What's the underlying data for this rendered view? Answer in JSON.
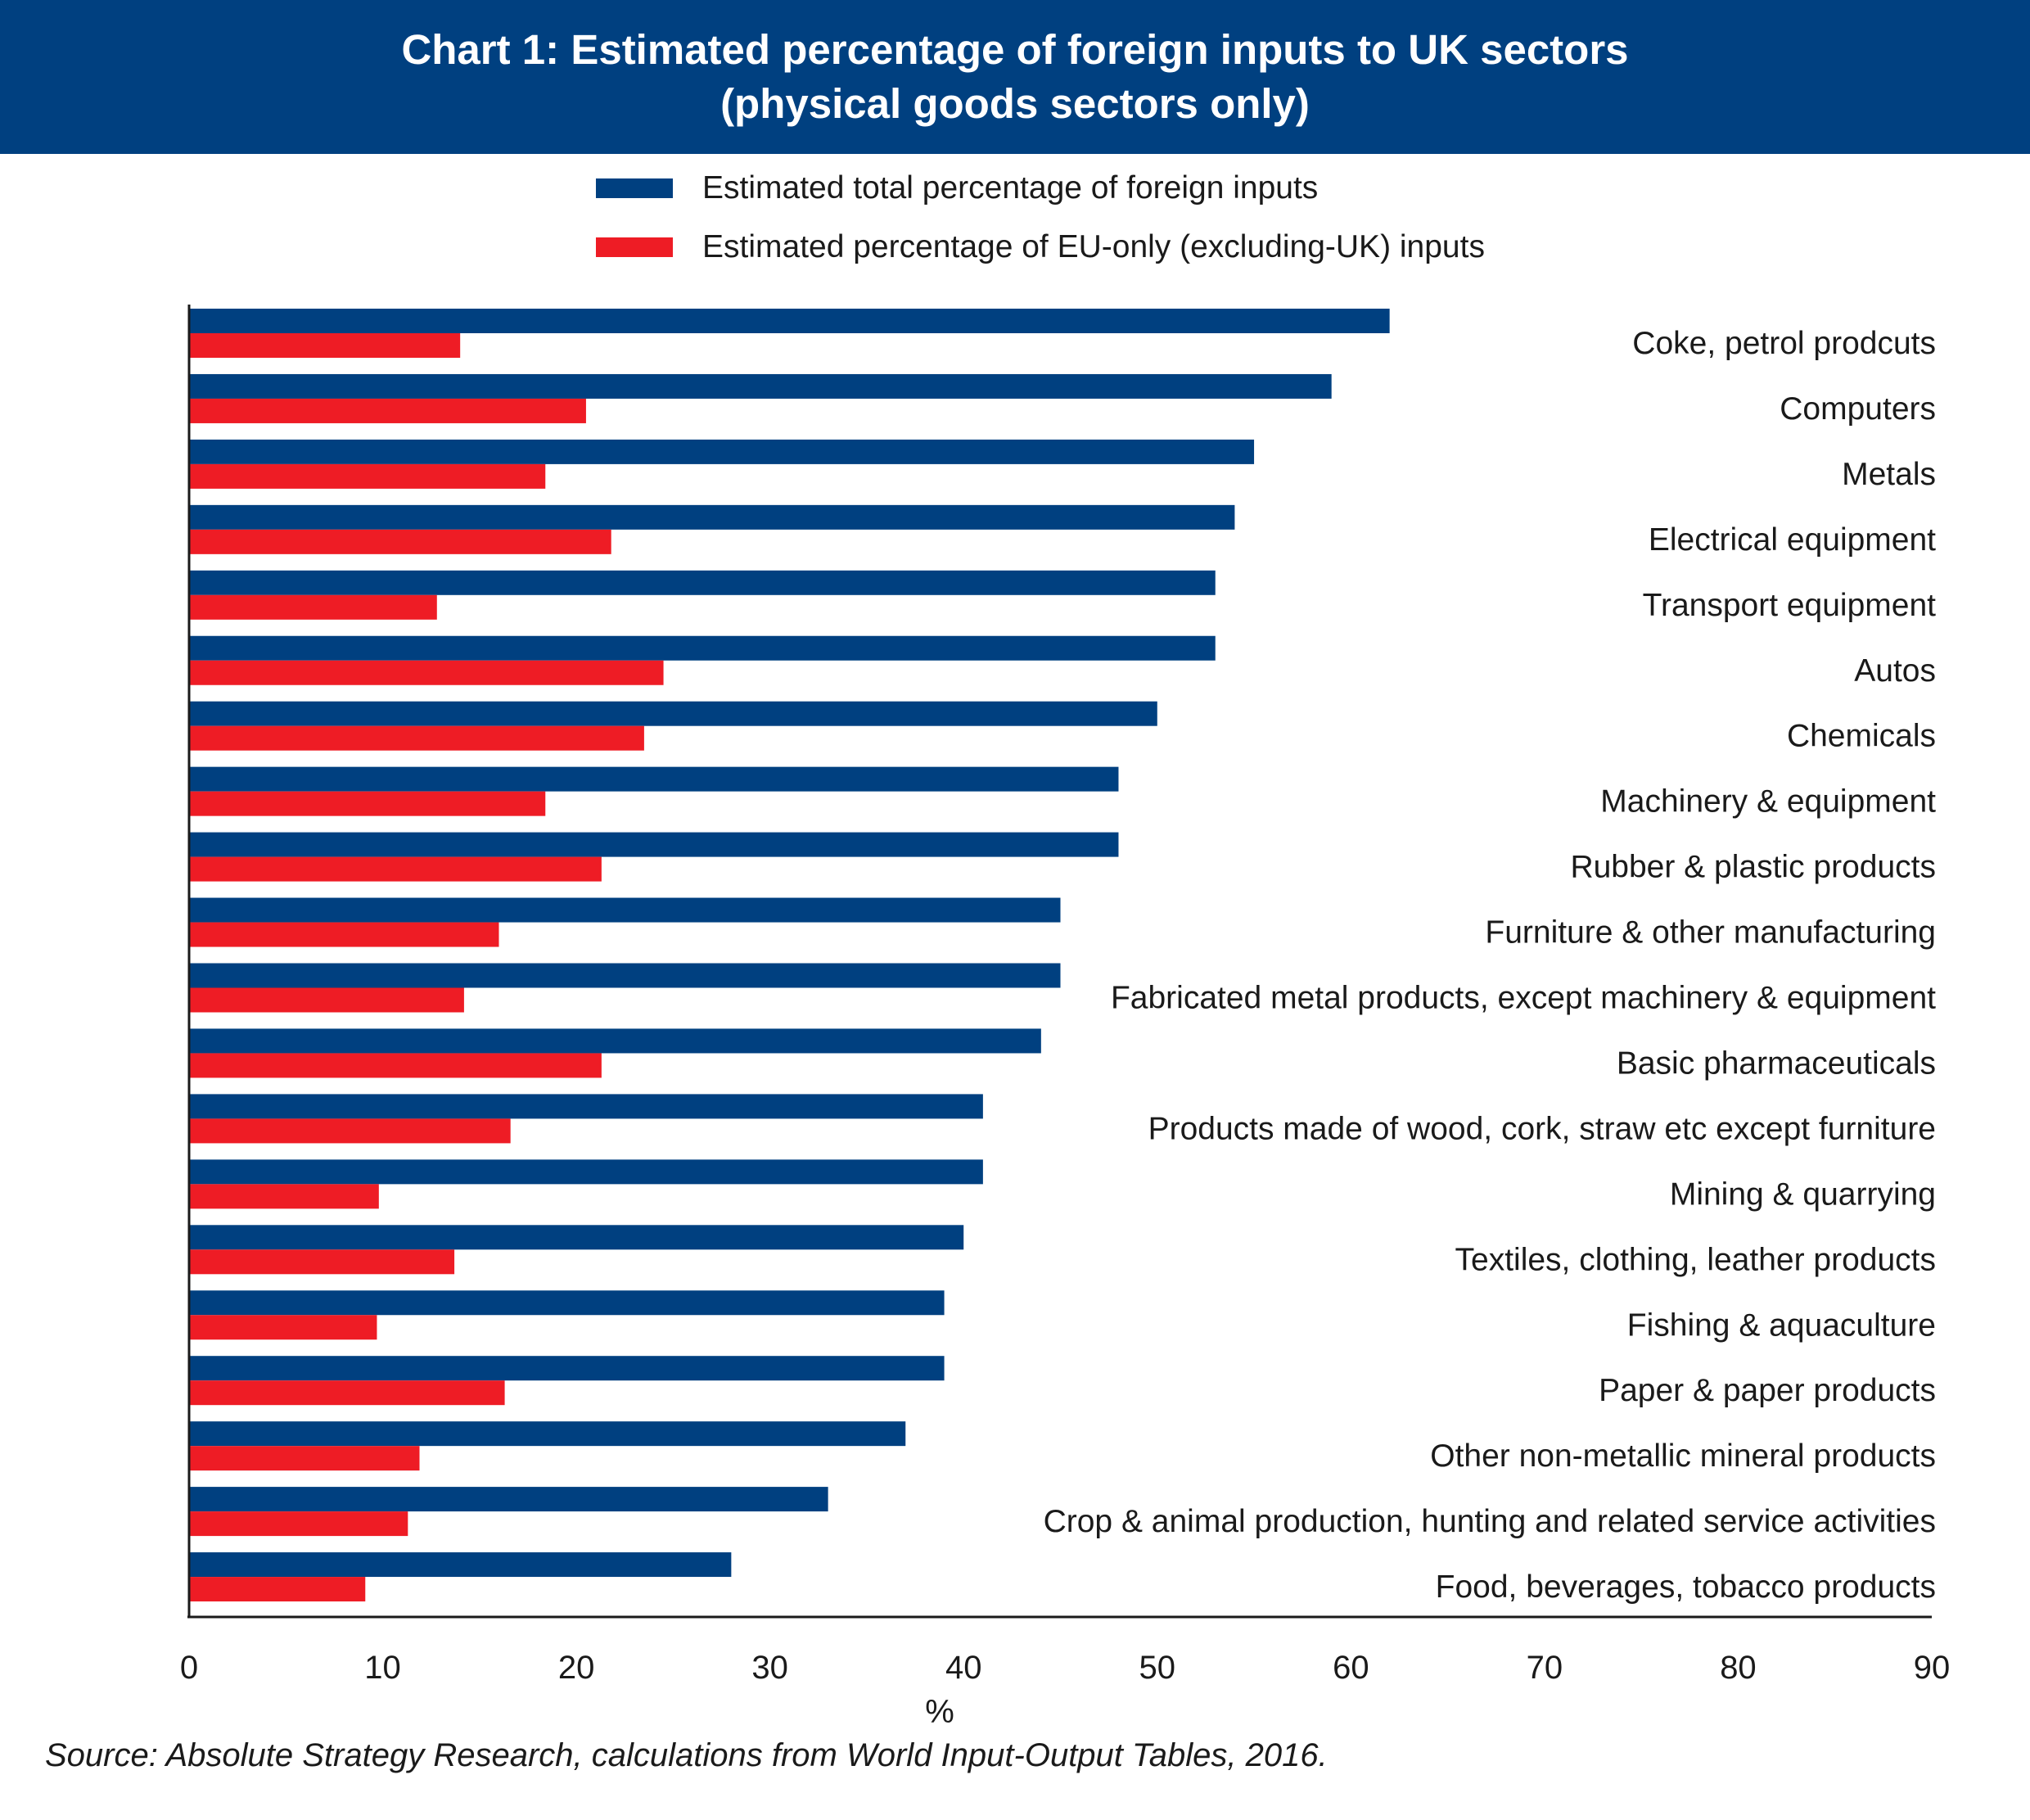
{
  "title_lines": [
    "Chart 1: Estimated percentage of foreign inputs to UK sectors",
    "(physical goods sectors only)"
  ],
  "source": "Source: Absolute Strategy Research, calculations from World Input-Output Tables, 2016.",
  "colors": {
    "header_bg": "#004080",
    "total": "#004080",
    "eu": "#ee1c25"
  },
  "chart_data": {
    "type": "bar",
    "orientation": "horizontal",
    "title": "Chart 1: Estimated percentage of foreign inputs to UK sectors (physical goods sectors only)",
    "xlabel": "%",
    "ylabel": "",
    "xlim": [
      0,
      90
    ],
    "xticks": [
      0,
      10,
      20,
      30,
      40,
      50,
      60,
      70,
      80,
      90
    ],
    "grid": false,
    "legend_position": "top",
    "categories": [
      "Coke, petrol prodcuts",
      "Computers",
      "Metals",
      "Electrical equipment",
      "Transport equipment",
      "Autos",
      "Chemicals",
      "Machinery & equipment",
      "Rubber & plastic products",
      "Furniture & other manufacturing",
      "Fabricated metal products, except machinery & equipment",
      "Basic pharmaceuticals",
      "Products made of wood, cork, straw etc except furniture",
      "Mining & quarrying",
      "Textiles, clothing, leather products",
      "Fishing & aquaculture",
      "Paper & paper products",
      "Other non-metallic mineral products",
      "Crop & animal production, hunting and related service activities",
      "Food, beverages, tobacco products"
    ],
    "series": [
      {
        "name": "Estimated total percentage of foreign inputs",
        "color": "#004080",
        "values": [
          62,
          59,
          55,
          54,
          53,
          53,
          50,
          48,
          48,
          45,
          45,
          44,
          41,
          41,
          40,
          39,
          39,
          37,
          33,
          28
        ]
      },
      {
        "name": "Estimated percentage of EU-only (excluding-UK) inputs",
        "color": "#ee1c25",
        "values": [
          14,
          20.5,
          18.4,
          21.8,
          12.8,
          24.5,
          23.5,
          18.4,
          21.3,
          16,
          14.2,
          21.3,
          16.6,
          9.8,
          13.7,
          9.7,
          16.3,
          11.9,
          11.3,
          9.1
        ]
      }
    ]
  }
}
